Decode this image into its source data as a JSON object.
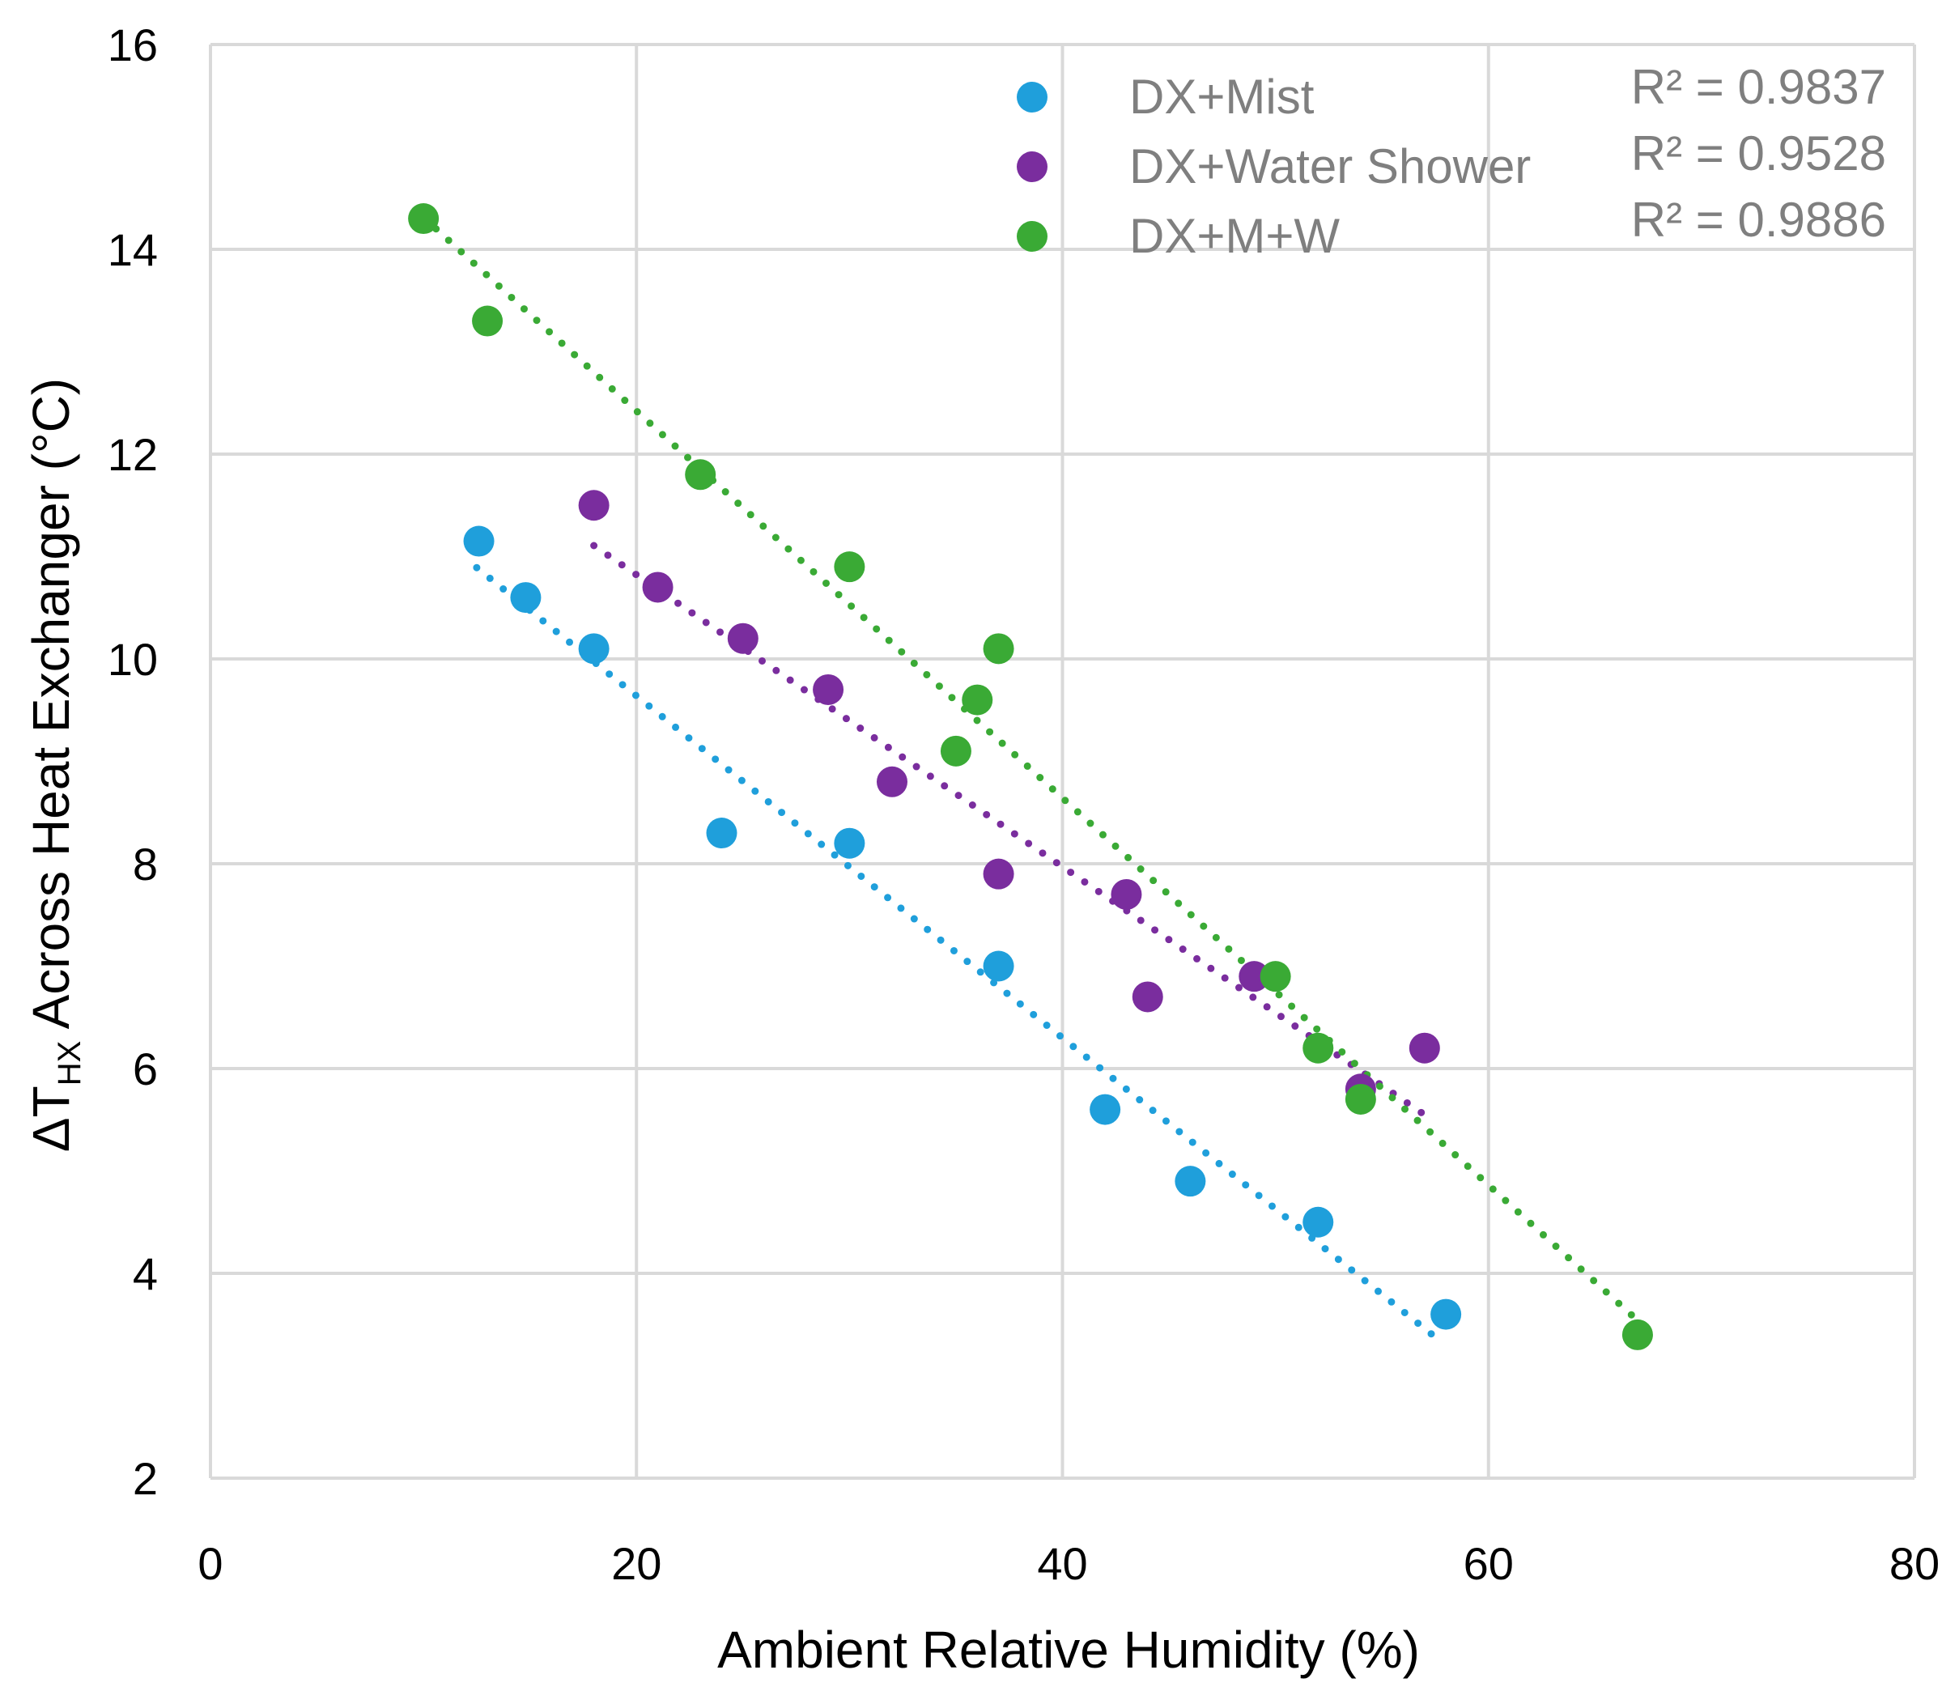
{
  "chart_data": {
    "type": "scatter",
    "title": "",
    "xlabel": "Ambient Relative Humidity (%)",
    "ylabel_parts": {
      "prefix": "ΔT",
      "subscript": "HX",
      "suffix": " Across Heat Exchanger (°C)"
    },
    "xlim": [
      0,
      80
    ],
    "ylim": [
      2,
      16
    ],
    "xticks": [
      0,
      20,
      40,
      60,
      80
    ],
    "yticks": [
      2,
      4,
      6,
      8,
      10,
      12,
      14,
      16
    ],
    "grid": true,
    "legend_position": "top-right",
    "series": [
      {
        "name": "DX+Mist",
        "color": "#1f9fdb",
        "r2": "R² = 0.9837",
        "trend": [
          12.5,
          57.5
        ],
        "points": [
          {
            "x": 12.6,
            "y": 11.15
          },
          {
            "x": 14.8,
            "y": 10.6
          },
          {
            "x": 18.0,
            "y": 10.1
          },
          {
            "x": 24.0,
            "y": 8.3
          },
          {
            "x": 30.0,
            "y": 8.2
          },
          {
            "x": 37.0,
            "y": 7.0
          },
          {
            "x": 42.0,
            "y": 5.6
          },
          {
            "x": 46.0,
            "y": 4.9
          },
          {
            "x": 52.0,
            "y": 4.5
          },
          {
            "x": 58.0,
            "y": 3.6
          }
        ]
      },
      {
        "name": "DX+Water Shower",
        "color": "#7a2d9e",
        "r2": "R² = 0.9528",
        "trend": [
          18.0,
          57.0
        ],
        "points": [
          {
            "x": 18.0,
            "y": 11.5
          },
          {
            "x": 21.0,
            "y": 10.7
          },
          {
            "x": 25.0,
            "y": 10.2
          },
          {
            "x": 29.0,
            "y": 9.7
          },
          {
            "x": 32.0,
            "y": 8.8
          },
          {
            "x": 37.0,
            "y": 7.9
          },
          {
            "x": 43.0,
            "y": 7.7
          },
          {
            "x": 44.0,
            "y": 6.7
          },
          {
            "x": 49.0,
            "y": 6.9
          },
          {
            "x": 54.0,
            "y": 5.8
          },
          {
            "x": 57.0,
            "y": 6.2
          }
        ]
      },
      {
        "name": "DX+M+W",
        "color": "#3aaa35",
        "r2": "R² = 0.9886",
        "trend": [
          10.0,
          67.0
        ],
        "points": [
          {
            "x": 10.0,
            "y": 14.3
          },
          {
            "x": 13.0,
            "y": 13.3
          },
          {
            "x": 23.0,
            "y": 11.8
          },
          {
            "x": 30.0,
            "y": 10.9
          },
          {
            "x": 37.0,
            "y": 10.1
          },
          {
            "x": 36.0,
            "y": 9.6
          },
          {
            "x": 35.0,
            "y": 9.1
          },
          {
            "x": 50.0,
            "y": 6.9
          },
          {
            "x": 52.0,
            "y": 6.2
          },
          {
            "x": 54.0,
            "y": 5.7
          },
          {
            "x": 67.0,
            "y": 3.4
          }
        ]
      }
    ]
  }
}
